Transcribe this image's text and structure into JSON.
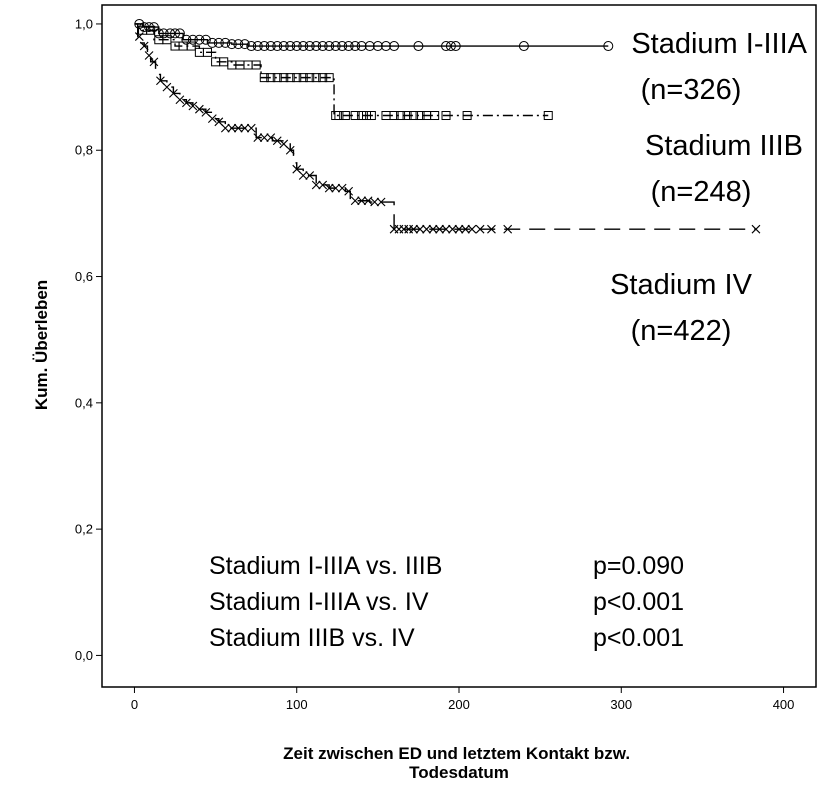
{
  "chart_data": {
    "type": "line",
    "xlabel": [
      "Zeit zwischen ED und letztem Kontakt bzw.",
      "Todesdatum"
    ],
    "ylabel": "Kum. Überleben",
    "xlim": [
      -20,
      420
    ],
    "ylim": [
      -0.05,
      1.03
    ],
    "x_ticks": [
      0,
      100,
      200,
      300,
      400
    ],
    "y_ticks": [
      0.0,
      0.2,
      0.4,
      0.6,
      0.8,
      1.0
    ],
    "y_tick_labels": [
      "0,0",
      "0,2",
      "0,4",
      "0,6",
      "0,8",
      "1,0"
    ],
    "series": [
      {
        "name": "Stadium I-IIIA",
        "n_label": "(n=326)",
        "style": "solid",
        "marker": "circle",
        "steps": [
          [
            0,
            1.0
          ],
          [
            5,
            0.995
          ],
          [
            15,
            0.985
          ],
          [
            30,
            0.975
          ],
          [
            45,
            0.97
          ],
          [
            60,
            0.968
          ],
          [
            70,
            0.965
          ],
          [
            292,
            0.965
          ]
        ],
        "censor_x": [
          3,
          6,
          9,
          12,
          15,
          18,
          22,
          25,
          28,
          32,
          36,
          40,
          44,
          48,
          52,
          56,
          60,
          64,
          68,
          72,
          76,
          80,
          84,
          88,
          92,
          96,
          100,
          104,
          108,
          112,
          116,
          120,
          124,
          128,
          132,
          136,
          140,
          145,
          150,
          155,
          160,
          175,
          192,
          195,
          198,
          240,
          292
        ]
      },
      {
        "name": "Stadium IIIB",
        "n_label": "(n=248)",
        "style": "dashdot",
        "marker": "square",
        "steps": [
          [
            0,
            1.0
          ],
          [
            5,
            0.99
          ],
          [
            12,
            0.975
          ],
          [
            25,
            0.965
          ],
          [
            40,
            0.955
          ],
          [
            50,
            0.94
          ],
          [
            60,
            0.935
          ],
          [
            78,
            0.915
          ],
          [
            123,
            0.915
          ],
          [
            123,
            0.855
          ],
          [
            255,
            0.855
          ]
        ],
        "censor_x": [
          5,
          10,
          15,
          20,
          25,
          30,
          35,
          40,
          45,
          50,
          55,
          60,
          65,
          70,
          75,
          80,
          84,
          88,
          92,
          96,
          100,
          104,
          108,
          112,
          116,
          120,
          124,
          126,
          130,
          136,
          140,
          143,
          146,
          155,
          160,
          164,
          168,
          172,
          176,
          180,
          185,
          192,
          205,
          255
        ]
      },
      {
        "name": "Stadium IV",
        "n_label": "(n=422)",
        "style": "dashed",
        "marker": "x",
        "steps": [
          [
            0,
            1.0
          ],
          [
            2,
            0.98
          ],
          [
            4,
            0.97
          ],
          [
            6,
            0.965
          ],
          [
            8,
            0.95
          ],
          [
            10,
            0.94
          ],
          [
            13,
            0.92
          ],
          [
            16,
            0.91
          ],
          [
            20,
            0.9
          ],
          [
            24,
            0.89
          ],
          [
            28,
            0.88
          ],
          [
            32,
            0.875
          ],
          [
            36,
            0.87
          ],
          [
            40,
            0.865
          ],
          [
            44,
            0.86
          ],
          [
            48,
            0.85
          ],
          [
            52,
            0.845
          ],
          [
            56,
            0.835
          ],
          [
            75,
            0.82
          ],
          [
            85,
            0.815
          ],
          [
            92,
            0.81
          ],
          [
            96,
            0.8
          ],
          [
            98,
            0.78
          ],
          [
            100,
            0.77
          ],
          [
            104,
            0.76
          ],
          [
            112,
            0.745
          ],
          [
            120,
            0.74
          ],
          [
            130,
            0.735
          ],
          [
            133,
            0.72
          ],
          [
            145,
            0.718
          ],
          [
            155,
            0.718
          ],
          [
            160,
            0.675
          ],
          [
            383,
            0.675
          ]
        ],
        "censor_x": [
          3,
          6,
          9,
          12,
          16,
          20,
          24,
          28,
          32,
          36,
          40,
          44,
          48,
          52,
          56,
          60,
          64,
          68,
          72,
          76,
          80,
          84,
          88,
          92,
          96,
          100,
          104,
          108,
          112,
          116,
          120,
          124,
          128,
          132,
          136,
          140,
          144,
          148,
          152,
          160,
          163,
          166,
          169,
          172,
          176,
          180,
          184,
          188,
          192,
          196,
          200,
          204,
          208,
          213,
          220,
          230,
          383
        ]
      }
    ],
    "annotations": {
      "stats": [
        {
          "label": "Stadium I-IIIA vs. IIIB",
          "p": "p=0.090"
        },
        {
          "label": "Stadium I-IIIA vs. IV",
          "p": "p<0.001"
        },
        {
          "label": "Stadium IIIB vs. IV",
          "p": "p<0.001"
        }
      ]
    }
  }
}
